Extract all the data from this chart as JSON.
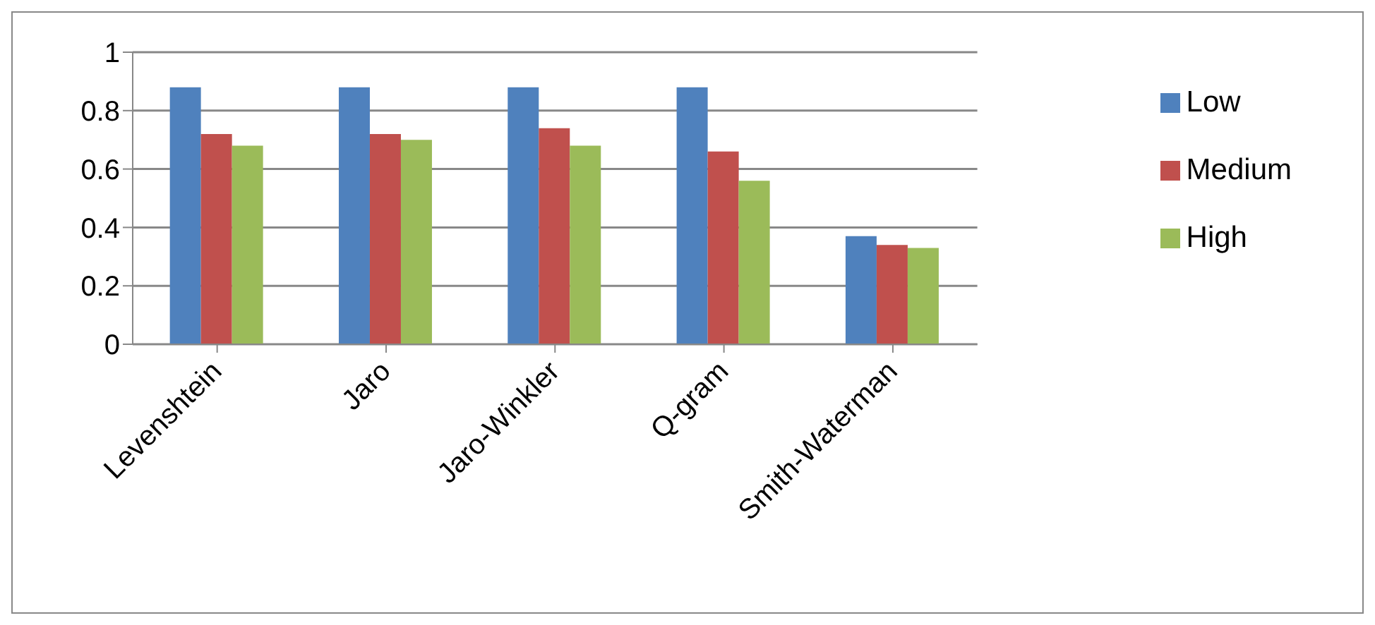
{
  "chart_data": {
    "type": "bar",
    "categories": [
      "Levenshtein",
      "Jaro",
      "Jaro-Winkler",
      "Q-gram",
      "Smith-Waterman"
    ],
    "series": [
      {
        "name": "Low",
        "color": "#4f81bd",
        "values": [
          0.88,
          0.88,
          0.88,
          0.88,
          0.37
        ]
      },
      {
        "name": "Medium",
        "color": "#c0504d",
        "values": [
          0.72,
          0.72,
          0.74,
          0.66,
          0.34
        ]
      },
      {
        "name": "High",
        "color": "#9bbb59",
        "values": [
          0.68,
          0.7,
          0.68,
          0.56,
          0.33
        ]
      }
    ],
    "ylim": [
      0,
      1
    ],
    "yticks": [
      0,
      0.2,
      0.4,
      0.6,
      0.8,
      1
    ],
    "grid": "y",
    "legend": "right"
  }
}
